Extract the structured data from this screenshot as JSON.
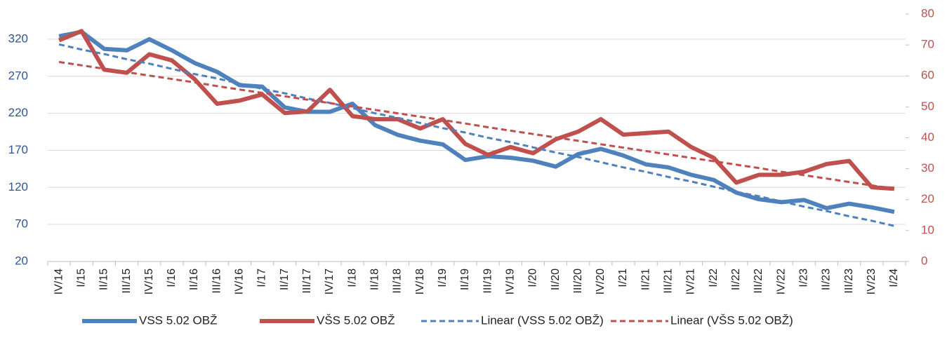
{
  "chart_data": {
    "type": "line",
    "categories": [
      "IV/14",
      "I/15",
      "II/15",
      "III/15",
      "IV/15",
      "I/16",
      "II/16",
      "III/16",
      "IV/16",
      "I/17",
      "II/17",
      "III/17",
      "IV/17",
      "I/18",
      "II/18",
      "III/18",
      "IV/18",
      "I/19",
      "II/19",
      "III/19",
      "IV/19",
      "I/20",
      "II/20",
      "III/20",
      "IV/20",
      "I/21",
      "II/21",
      "III/21",
      "IV/21",
      "I/22",
      "II/22",
      "III/22",
      "IV/22",
      "I/23",
      "II/23",
      "III/23",
      "IV/23",
      "I/24"
    ],
    "series": [
      {
        "name": "VSS 5.02 OBŽ",
        "color": "#4f81bd",
        "axis": "y",
        "dashed": false,
        "values": [
          324,
          330,
          307,
          305,
          320,
          305,
          288,
          276,
          258,
          256,
          228,
          222,
          222,
          233,
          204,
          191,
          183,
          178,
          157,
          162,
          160,
          156,
          148,
          165,
          172,
          163,
          151,
          147,
          137,
          130,
          113,
          104,
          100,
          103,
          92,
          98,
          93,
          87
        ]
      },
      {
        "name": "VŠS 5.02 OBŽ",
        "color": "#c0504d",
        "axis": "y2",
        "dashed": false,
        "values": [
          71.5,
          74.5,
          62,
          61,
          67,
          65,
          59,
          51,
          52,
          54,
          48,
          48.5,
          55.5,
          47,
          46,
          46,
          43,
          46,
          38,
          34.5,
          37,
          35,
          39.5,
          42,
          46,
          41,
          41.5,
          42,
          37,
          33.5,
          25.5,
          28,
          28,
          29,
          31.5,
          32.5,
          24,
          23.5
        ]
      },
      {
        "name": "Linear (VSS 5.02 OBŽ)",
        "color": "#4f81bd",
        "axis": "y",
        "dashed": true,
        "values": [
          313,
          306,
          300,
          293,
          287,
          280,
          273,
          267,
          260,
          253,
          247,
          240,
          234,
          227,
          220,
          214,
          207,
          200,
          194,
          187,
          181,
          174,
          167,
          161,
          154,
          147,
          141,
          134,
          128,
          121,
          114,
          108,
          101,
          94,
          88,
          81,
          75,
          68
        ]
      },
      {
        "name": "Linear (VŠS 5.02 OBŽ)",
        "color": "#c0504d",
        "axis": "y2",
        "dashed": true,
        "values": [
          64.5,
          63.4,
          62.3,
          61.2,
          60.1,
          59.0,
          57.9,
          56.7,
          55.6,
          54.5,
          53.4,
          52.3,
          51.2,
          50.1,
          49.0,
          47.9,
          46.8,
          45.7,
          44.6,
          43.4,
          42.3,
          41.2,
          40.1,
          39.0,
          37.9,
          36.8,
          35.7,
          34.6,
          33.5,
          32.4,
          31.3,
          30.2,
          29.0,
          27.9,
          26.8,
          25.7,
          24.6,
          23.5
        ]
      }
    ],
    "ylim": [
      20,
      354
    ],
    "yticks": [
      20,
      70,
      120,
      170,
      220,
      270,
      320
    ],
    "y2lim": [
      0,
      80
    ],
    "y2ticks": [
      0,
      10,
      20,
      30,
      40,
      50,
      60,
      70,
      80
    ],
    "grid": true,
    "legend": "bottom"
  }
}
